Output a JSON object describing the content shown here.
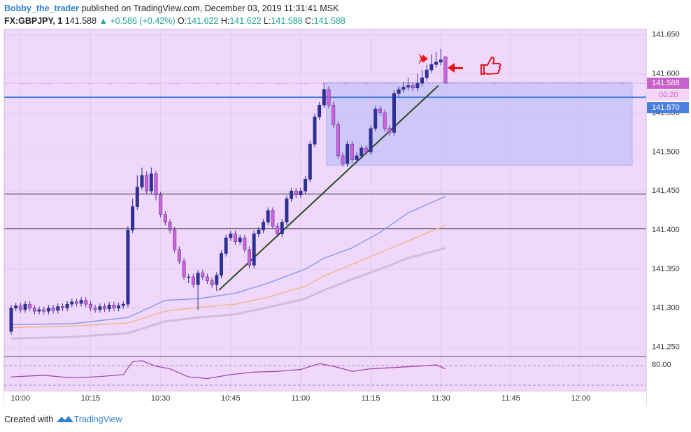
{
  "header": {
    "author": "Bobby_the_trader",
    "published": "published on TradingView.com, December 03, 2019 11:31:41 MSK",
    "symbol": "FX:GBPJPY, 1",
    "price": "141.588",
    "change": "▲ +0.586 (+0.42%)",
    "o_label": "O:",
    "o": "141.622",
    "h_label": "H:",
    "h": "141.622",
    "l_label": "L:",
    "l": "141.588",
    "c_label": "C:",
    "c": "141.588"
  },
  "chart_data": [
    {
      "type": "candlestick",
      "up_color": "#2e3192",
      "down_color": "#cf63d9",
      "x": [
        598,
        599,
        600,
        601,
        602,
        603,
        604,
        605,
        606,
        607,
        608,
        609,
        610,
        611,
        612,
        613,
        614,
        615,
        616,
        617,
        618,
        619,
        620,
        621,
        622,
        623,
        624,
        625,
        626,
        627,
        628,
        629,
        630,
        631,
        632,
        633,
        634,
        635,
        636,
        637,
        638,
        639,
        640,
        641,
        642,
        643,
        644,
        645,
        646,
        647,
        648,
        649,
        650,
        651,
        652,
        653,
        654,
        655,
        656,
        657,
        658,
        659,
        660,
        661,
        662,
        663,
        664,
        665,
        666,
        667,
        668,
        669,
        670,
        671,
        672,
        673,
        674,
        675,
        676,
        677,
        678,
        679,
        680,
        681,
        682,
        683,
        684,
        685,
        686,
        687,
        688,
        689,
        690,
        691
      ],
      "open": [
        141.27,
        141.3,
        141.303,
        141.298,
        141.305,
        141.3,
        141.296,
        141.298,
        141.296,
        141.3,
        141.297,
        141.302,
        141.3,
        141.305,
        141.308,
        141.306,
        141.31,
        141.305,
        141.3,
        141.298,
        141.302,
        141.299,
        141.304,
        141.3,
        141.303,
        141.305,
        141.4,
        141.43,
        141.455,
        141.47,
        141.45,
        141.472,
        141.445,
        141.42,
        141.41,
        141.4,
        141.375,
        141.36,
        141.34,
        141.34,
        141.33,
        141.345,
        141.34,
        141.335,
        141.33,
        141.342,
        141.37,
        141.39,
        141.395,
        141.385,
        141.39,
        141.375,
        141.355,
        141.395,
        141.4,
        141.41,
        141.425,
        141.405,
        141.395,
        141.41,
        141.44,
        141.45,
        141.445,
        141.45,
        141.465,
        141.51,
        141.545,
        141.56,
        141.58,
        141.56,
        141.535,
        141.495,
        141.485,
        141.51,
        141.49,
        141.495,
        141.505,
        141.5,
        141.53,
        141.555,
        141.55,
        141.53,
        141.525,
        141.575,
        141.58,
        141.583,
        141.585,
        141.582,
        141.588,
        141.595,
        141.605,
        141.612,
        141.615,
        141.622
      ],
      "high": [
        141.304,
        141.307,
        141.307,
        141.309,
        141.309,
        141.304,
        141.302,
        141.302,
        141.304,
        141.304,
        141.306,
        141.306,
        141.309,
        141.312,
        141.312,
        141.314,
        141.314,
        141.309,
        141.304,
        141.306,
        141.306,
        141.308,
        141.308,
        141.307,
        141.309,
        141.405,
        141.44,
        141.47,
        141.48,
        141.475,
        141.48,
        141.476,
        141.449,
        141.424,
        141.414,
        141.404,
        141.379,
        141.364,
        141.344,
        141.344,
        141.349,
        141.349,
        141.344,
        141.339,
        141.346,
        141.374,
        141.394,
        141.399,
        141.399,
        141.394,
        141.394,
        141.379,
        141.399,
        141.404,
        141.414,
        141.429,
        141.429,
        141.409,
        141.414,
        141.444,
        141.454,
        141.454,
        141.454,
        141.469,
        141.514,
        141.549,
        141.564,
        141.589,
        141.584,
        141.564,
        141.539,
        141.499,
        141.514,
        141.514,
        141.499,
        141.509,
        141.509,
        141.534,
        141.559,
        141.559,
        141.554,
        141.534,
        141.579,
        141.584,
        141.59,
        141.595,
        141.589,
        141.6,
        141.605,
        141.612,
        141.625,
        141.628,
        141.632,
        141.622
      ],
      "low": [
        141.266,
        141.296,
        141.294,
        141.294,
        141.296,
        141.292,
        141.292,
        141.292,
        141.292,
        141.293,
        141.293,
        141.296,
        141.296,
        141.301,
        141.302,
        141.302,
        141.301,
        141.296,
        141.294,
        141.294,
        141.295,
        141.295,
        141.296,
        141.296,
        141.299,
        141.301,
        141.396,
        141.426,
        141.451,
        141.446,
        141.446,
        141.438,
        141.416,
        141.406,
        141.396,
        141.371,
        141.356,
        141.336,
        141.332,
        141.326,
        141.298,
        141.336,
        141.331,
        141.326,
        141.322,
        141.338,
        141.366,
        141.386,
        141.381,
        141.381,
        141.371,
        141.351,
        141.351,
        141.391,
        141.396,
        141.406,
        141.401,
        141.391,
        141.391,
        141.406,
        141.436,
        141.441,
        141.441,
        141.446,
        141.461,
        141.506,
        141.541,
        141.556,
        141.556,
        141.531,
        141.491,
        141.481,
        141.481,
        141.486,
        141.486,
        141.491,
        141.496,
        141.496,
        141.526,
        141.546,
        141.526,
        141.521,
        141.521,
        141.571,
        141.576,
        141.579,
        141.578,
        141.578,
        141.584,
        141.591,
        141.601,
        141.608,
        141.611,
        141.588
      ],
      "close": [
        141.3,
        141.303,
        141.298,
        141.305,
        141.3,
        141.296,
        141.298,
        141.296,
        141.3,
        141.297,
        141.302,
        141.3,
        141.305,
        141.308,
        141.306,
        141.31,
        141.305,
        141.3,
        141.298,
        141.302,
        141.299,
        141.304,
        141.3,
        141.303,
        141.305,
        141.4,
        141.43,
        141.455,
        141.47,
        141.45,
        141.472,
        141.445,
        141.42,
        141.41,
        141.4,
        141.375,
        141.36,
        141.34,
        141.34,
        141.33,
        141.345,
        141.34,
        141.335,
        141.33,
        141.342,
        141.37,
        141.39,
        141.395,
        141.385,
        141.39,
        141.375,
        141.355,
        141.395,
        141.4,
        141.41,
        141.425,
        141.405,
        141.395,
        141.41,
        141.44,
        141.45,
        141.445,
        141.45,
        141.465,
        141.51,
        141.545,
        141.56,
        141.58,
        141.56,
        141.535,
        141.495,
        141.485,
        141.51,
        141.49,
        141.495,
        141.505,
        141.5,
        141.53,
        141.555,
        141.55,
        141.53,
        141.525,
        141.575,
        141.58,
        141.583,
        141.585,
        141.582,
        141.588,
        141.595,
        141.605,
        141.612,
        141.615,
        141.618,
        141.588
      ],
      "moving_averages": [
        {
          "color": "#8e9ce8",
          "x": [
            598,
            611,
            623,
            631,
            638,
            646,
            653,
            661,
            665,
            671,
            677,
            683,
            691
          ],
          "values": [
            141.279,
            141.28,
            141.288,
            141.31,
            141.312,
            141.319,
            141.332,
            141.35,
            141.364,
            141.377,
            141.397,
            141.422,
            141.443
          ]
        },
        {
          "color": "#f2b88c",
          "x": [
            598,
            611,
            623,
            631,
            638,
            646,
            653,
            661,
            665,
            671,
            677,
            683,
            691
          ],
          "values": [
            141.275,
            141.277,
            141.281,
            141.296,
            141.301,
            141.305,
            141.314,
            141.328,
            141.341,
            141.356,
            141.371,
            141.386,
            141.406
          ]
        },
        {
          "color": "#cdbde0",
          "x": [
            598,
            611,
            623,
            631,
            638,
            646,
            653,
            661,
            665,
            671,
            677,
            683,
            691
          ],
          "values": [
            141.261,
            141.263,
            141.268,
            141.283,
            141.288,
            141.292,
            141.301,
            141.312,
            141.323,
            141.337,
            141.35,
            141.364,
            141.377
          ]
        }
      ],
      "horizontal_lines": [
        141.446,
        141.402
      ],
      "blue_line": {
        "value": 141.57,
        "label": "141.570",
        "color": "#4a7fe0"
      },
      "last_price": {
        "value": 141.588,
        "label": "141.588",
        "color": "#c961cc"
      },
      "countdown": "00:20",
      "rectangle": {
        "x": [
          665.5,
          731
        ],
        "y": [
          141.589,
          141.483
        ],
        "color": "#a9b4f2"
      },
      "trendline": {
        "x": [
          642.5,
          689.5
        ],
        "y": [
          141.323,
          141.585
        ],
        "color": "#2b4a22"
      },
      "xlim": [
        596.5,
        734
      ],
      "ylim": [
        141.238,
        141.657
      ],
      "xticks": [
        {
          "value": 600,
          "label": "10:00"
        },
        {
          "value": 615,
          "label": "10:15"
        },
        {
          "value": 630,
          "label": "10:30"
        },
        {
          "value": 645,
          "label": "10:45"
        },
        {
          "value": 660,
          "label": "11:00"
        },
        {
          "value": 675,
          "label": "11:15"
        },
        {
          "value": 690,
          "label": "11:30"
        },
        {
          "value": 705,
          "label": "11:45"
        },
        {
          "value": 720,
          "label": "12:00"
        }
      ],
      "yticks": [
        {
          "value": 141.25,
          "label": "141.250"
        },
        {
          "value": 141.3,
          "label": "141.300"
        },
        {
          "value": 141.35,
          "label": "141.350"
        },
        {
          "value": 141.4,
          "label": "141.400"
        },
        {
          "value": 141.45,
          "label": "141.450"
        },
        {
          "value": 141.5,
          "label": "141.500"
        },
        {
          "value": 141.55,
          "label": "141.550"
        },
        {
          "value": 141.6,
          "label": "141.600"
        },
        {
          "value": 141.65,
          "label": "141.650"
        }
      ],
      "grid": true
    },
    {
      "type": "line",
      "color": "#9c3fa3",
      "x": [
        598,
        605,
        611,
        617,
        622,
        624,
        626,
        629,
        632,
        636,
        640,
        645,
        650,
        655,
        660,
        664,
        667,
        671,
        675,
        680,
        685,
        689,
        691
      ],
      "values": [
        45,
        50,
        42,
        46,
        52,
        92,
        95,
        78,
        70,
        45,
        40,
        52,
        60,
        62,
        68,
        86,
        78,
        62,
        70,
        74,
        78,
        82,
        70
      ],
      "xlim": [
        596.5,
        734
      ],
      "ylim": [
        0,
        108
      ],
      "yticks": [
        {
          "value": 80,
          "label": "80.00"
        }
      ]
    }
  ],
  "footer": {
    "text": "Created with",
    "brand": "TradingView"
  }
}
